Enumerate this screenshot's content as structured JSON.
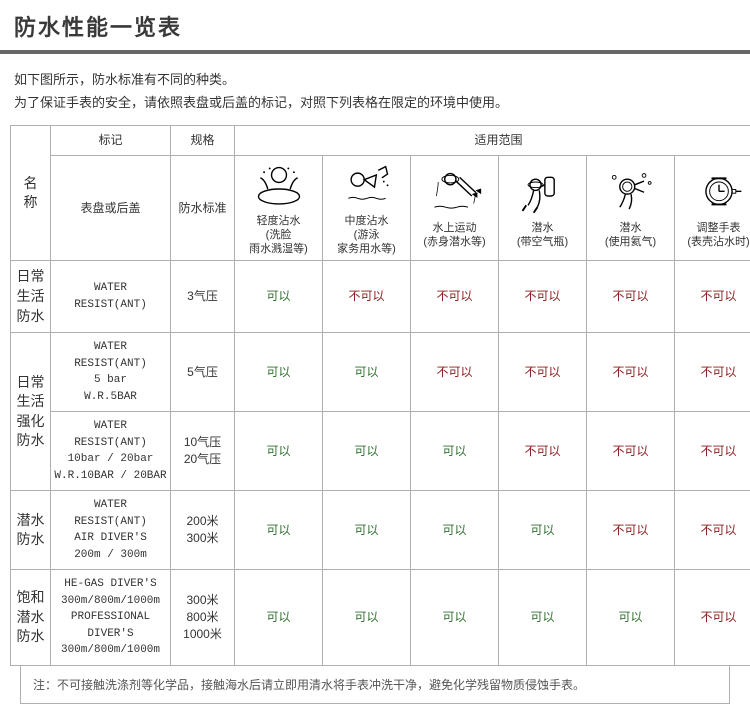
{
  "header": {
    "title": "防水性能一览表"
  },
  "intro": {
    "line1": "如下图所示，防水标准有不同的种类。",
    "line2": "为了保证手表的安全，请依照表盘或后盖的标记，对照下列表格在限定的环境中使用。"
  },
  "columns": {
    "name": "名称",
    "mark_hdr": "标记",
    "mark_sub": "表盘或后盖",
    "spec_hdr": "规格",
    "spec_sub": "防水标准",
    "scope_hdr": "适用范围",
    "scopes": [
      {
        "top": "轻度沾水",
        "sub": "(洗脸\n雨水溅湿等)"
      },
      {
        "top": "中度沾水",
        "sub": "(游泳\n家务用水等)"
      },
      {
        "top": "水上运动",
        "sub": "(赤身潜水等)"
      },
      {
        "top": "潜水",
        "sub": "(带空气瓶)"
      },
      {
        "top": "潜水",
        "sub": "(使用氦气)"
      },
      {
        "top": "调整手表",
        "sub": "(表壳沾水时)"
      }
    ]
  },
  "rows": [
    {
      "name": "日常\n生活\n防水",
      "mark": "WATER\nRESIST(ANT)",
      "spec": "3气压",
      "vals": [
        "可以",
        "不可以",
        "不可以",
        "不可以",
        "不可以",
        "不可以"
      ]
    },
    {
      "name": "日常\n生活\n强化\n防水",
      "group": [
        {
          "mark": "WATER\nRESIST(ANT)\n5 bar\nW.R.5BAR",
          "spec": "5气压",
          "vals": [
            "可以",
            "可以",
            "不可以",
            "不可以",
            "不可以",
            "不可以"
          ]
        },
        {
          "mark": "WATER\nRESIST(ANT)\n10bar / 20bar\nW.R.10BAR / 20BAR",
          "spec": "10气压\n20气压",
          "vals": [
            "可以",
            "可以",
            "可以",
            "不可以",
            "不可以",
            "不可以"
          ]
        }
      ]
    },
    {
      "name": "潜水\n防水",
      "mark": "WATER\nRESIST(ANT)\nAIR DIVER'S\n200m / 300m",
      "spec": "200米\n300米",
      "vals": [
        "可以",
        "可以",
        "可以",
        "可以",
        "不可以",
        "不可以"
      ]
    },
    {
      "name": "饱和\n潜水\n防水",
      "mark": "HE-GAS DIVER'S\n300m/800m/1000m\n\nPROFESSIONAL\nDIVER'S\n300m/800m/1000m",
      "spec": "300米\n800米\n1000米",
      "vals": [
        "可以",
        "可以",
        "可以",
        "可以",
        "可以",
        "不可以"
      ]
    }
  ],
  "note": "注：不可接触洗涤剂等化学品，接触海水后请立即用清水将手表冲洗干净，避免化学残留物质侵蚀手表。",
  "ok_label": "可以",
  "no_label": "不可以"
}
